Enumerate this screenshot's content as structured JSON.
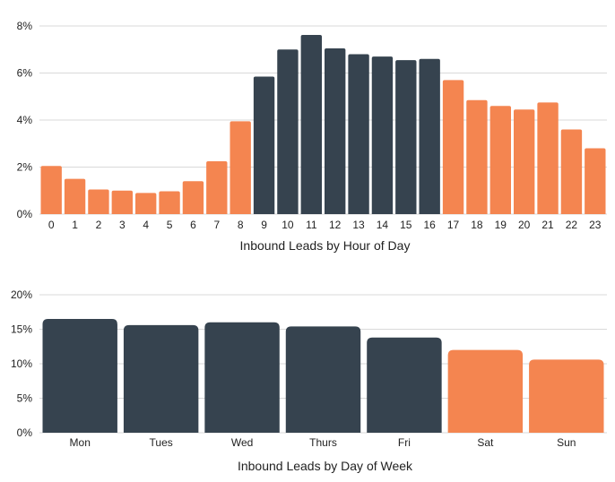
{
  "colors": {
    "business_hours": "#36434f",
    "off_hours": "#f48550",
    "grid": "#d9d9d9",
    "text": "#222222"
  },
  "chart_data": [
    {
      "type": "bar",
      "title": "",
      "xlabel": "Inbound Leads by Hour of Day",
      "ylabel": "",
      "categories": [
        "0",
        "1",
        "2",
        "3",
        "4",
        "5",
        "6",
        "7",
        "8",
        "9",
        "10",
        "11",
        "12",
        "13",
        "14",
        "15",
        "16",
        "17",
        "18",
        "19",
        "20",
        "21",
        "22",
        "23"
      ],
      "values": [
        2.05,
        1.5,
        1.05,
        1.0,
        0.9,
        0.97,
        1.4,
        2.25,
        3.95,
        5.85,
        7.0,
        7.62,
        7.05,
        6.8,
        6.7,
        6.55,
        6.6,
        5.7,
        4.85,
        4.6,
        4.45,
        4.75,
        3.6,
        2.8
      ],
      "highlight": [
        "off",
        "off",
        "off",
        "off",
        "off",
        "off",
        "off",
        "off",
        "off",
        "on",
        "on",
        "on",
        "on",
        "on",
        "on",
        "on",
        "on",
        "off",
        "off",
        "off",
        "off",
        "off",
        "off",
        "off"
      ],
      "ylim": [
        0,
        8
      ],
      "yticks": [
        0,
        2,
        4,
        6,
        8
      ],
      "ytick_labels": [
        "0%",
        "2%",
        "4%",
        "6%",
        "8%"
      ],
      "grid": true,
      "legend": "none"
    },
    {
      "type": "bar",
      "title": "",
      "xlabel": "Inbound Leads by Day of Week",
      "ylabel": "",
      "categories": [
        "Mon",
        "Tues",
        "Wed",
        "Thurs",
        "Fri",
        "Sat",
        "Sun"
      ],
      "values": [
        16.5,
        15.6,
        16.0,
        15.4,
        13.8,
        12.0,
        10.6
      ],
      "highlight": [
        "on",
        "on",
        "on",
        "on",
        "on",
        "off",
        "off"
      ],
      "ylim": [
        0,
        20
      ],
      "yticks": [
        0,
        5,
        10,
        15,
        20
      ],
      "ytick_labels": [
        "0%",
        "5%",
        "10%",
        "15%",
        "20%"
      ],
      "grid": true,
      "legend": "none"
    }
  ]
}
